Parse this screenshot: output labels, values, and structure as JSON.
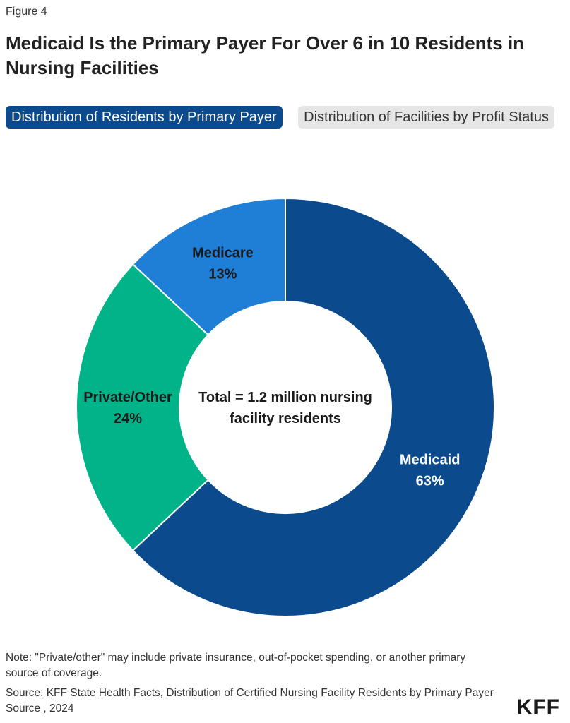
{
  "figure_label": "Figure 4",
  "title": "Medicaid Is the Primary Payer For Over 6 in 10 Residents in Nursing Facilities",
  "tabs": [
    {
      "label": "Distribution of Residents by Primary Payer",
      "active": true
    },
    {
      "label": "Distribution of Facilities by Profit Status",
      "active": false
    }
  ],
  "chart_data": {
    "type": "pie",
    "donut": true,
    "center_label": [
      "Total = 1.2 million nursing",
      "facility residents"
    ],
    "slices": [
      {
        "label": "Medicaid",
        "value": 63,
        "value_label": "63%",
        "color": "#0b4a8c",
        "label_color": "#ffffff"
      },
      {
        "label": "Private/Other",
        "value": 24,
        "value_label": "24%",
        "color": "#00b388",
        "label_color": "#1a1a1a"
      },
      {
        "label": "Medicare",
        "value": 13,
        "value_label": "13%",
        "color": "#1f7fd6",
        "label_color": "#1a1a1a"
      }
    ]
  },
  "note": "Note: \"Private/other\" may include private insurance, out-of-pocket spending, or another primary source of coverage.",
  "source": "Source: KFF State Health Facts, Distribution of Certified Nursing Facility Residents by Primary Payer Source , 2024",
  "logo": "KFF"
}
